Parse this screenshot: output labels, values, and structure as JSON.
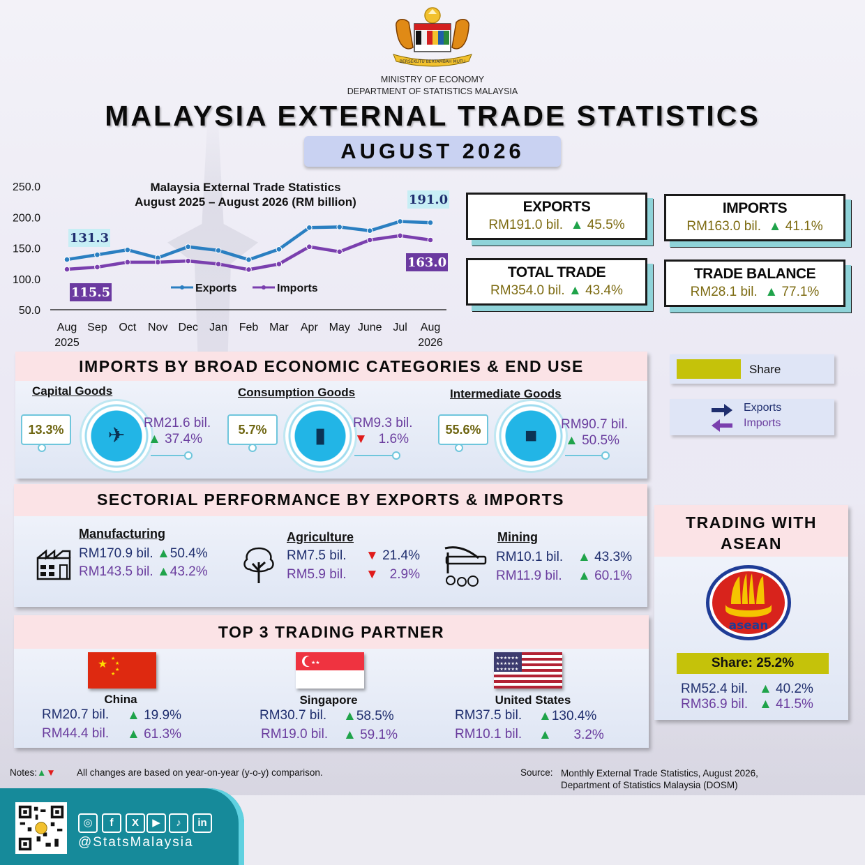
{
  "header": {
    "ministry_line1": "MINISTRY OF ECONOMY",
    "ministry_line2": "DEPARTMENT OF STATISTICS MALAYSIA",
    "crest_motto": "BERSEKUTU BERTAMBAH MUTU",
    "title": "MALAYSIA EXTERNAL TRADE STATISTICS",
    "period": "AUGUST 2026"
  },
  "chart_data": {
    "type": "line",
    "title_line1": "Malaysia External Trade Statistics",
    "title_line2": "August 2025 – August 2026 (RM billion)",
    "categories": [
      "Aug",
      "Sep",
      "Oct",
      "Nov",
      "Dec",
      "Jan",
      "Feb",
      "Mar",
      "Apr",
      "May",
      "June",
      "Jul",
      "Aug"
    ],
    "year_start": "2025",
    "year_end": "2026",
    "series": [
      {
        "name": "Exports",
        "color": "#2a7fc1",
        "values": [
          131.3,
          139,
          147,
          134,
          152,
          146,
          131,
          148,
          183,
          184,
          178,
          193,
          191.0
        ]
      },
      {
        "name": "Imports",
        "color": "#7a3fae",
        "values": [
          115.5,
          119,
          127,
          127,
          129,
          124,
          115,
          124,
          152,
          144,
          163,
          170,
          163.0
        ]
      }
    ],
    "labels": {
      "exports_first": "131.3",
      "exports_last": "191.0",
      "imports_first": "115.5",
      "imports_last": "163.0"
    },
    "yticks": [
      "250.0",
      "200.0",
      "150.0",
      "100.0",
      "50.0"
    ],
    "ylim": [
      50,
      250
    ],
    "grid": false,
    "legend": "inside-bottom"
  },
  "stats": {
    "exports": {
      "title": "EXPORTS",
      "value": "RM191.0 bil.",
      "arrow": "▲",
      "change": "45.5%"
    },
    "imports": {
      "title": "IMPORTS",
      "value": "RM163.0 bil.",
      "arrow": "▲",
      "change": "41.1%"
    },
    "total_trade": {
      "title": "TOTAL TRADE",
      "value": "RM354.0 bil.",
      "arrow": "▲",
      "change": "43.4%"
    },
    "trade_balance": {
      "title": "TRADE BALANCE",
      "value": "RM28.1 bil.",
      "arrow": "▲",
      "change": "77.1%"
    }
  },
  "legend_panel": {
    "share": "Share",
    "share_color": "#c5c20a",
    "exports": "Exports",
    "imports": "Imports"
  },
  "imports_bec": {
    "title": "IMPORTS BY BROAD ECONOMIC CATEGORIES & END USE",
    "items": [
      {
        "name": "Capital Goods",
        "share": "13.3%",
        "value": "RM21.6 bil.",
        "arrow": "▲",
        "change": "37.4%",
        "icon": "truck-globe-icon"
      },
      {
        "name": "Consumption Goods",
        "share": "5.7%",
        "value": "RM9.3 bil.",
        "arrow": "▼",
        "change": "1.6%",
        "icon": "shopping-basket-icon"
      },
      {
        "name": "Intermediate Goods",
        "share": "55.6%",
        "value": "RM90.7 bil.",
        "arrow": "▲",
        "change": "50.5%",
        "icon": "factory-icon"
      }
    ]
  },
  "sectorial": {
    "title": "SECTORIAL PERFORMANCE BY EXPORTS & IMPORTS",
    "items": [
      {
        "name": "Manufacturing",
        "exp_value": "RM170.9 bil.",
        "exp_arrow": "▲",
        "exp_change": "50.4%",
        "imp_value": "RM143.5 bil.",
        "imp_arrow": "▲",
        "imp_change": "43.2%",
        "icon": "factory-icon"
      },
      {
        "name": "Agriculture",
        "exp_value": "RM7.5 bil.",
        "exp_arrow": "▼",
        "exp_change": "21.4%",
        "imp_value": "RM5.9 bil.",
        "imp_arrow": "▼",
        "imp_change": "2.9%",
        "icon": "tree-icon"
      },
      {
        "name": "Mining",
        "exp_value": "RM10.1 bil.",
        "exp_arrow": "▲",
        "exp_change": "43.3%",
        "imp_value": "RM11.9 bil.",
        "imp_arrow": "▲",
        "imp_change": "60.1%",
        "icon": "pickaxe-icon"
      }
    ]
  },
  "partners": {
    "title": "TOP 3 TRADING PARTNER",
    "items": [
      {
        "name": "China",
        "exp_value": "RM20.7 bil.",
        "exp_arrow": "▲",
        "exp_change": "19.9%",
        "imp_value": "RM44.4 bil.",
        "imp_arrow": "▲",
        "imp_change": "61.3%"
      },
      {
        "name": "Singapore",
        "exp_value": "RM30.7 bil.",
        "exp_arrow": "▲",
        "exp_change": "58.5%",
        "imp_value": "RM19.0 bil.",
        "imp_arrow": "▲",
        "imp_change": "59.1%"
      },
      {
        "name": "United States",
        "exp_value": "RM37.5 bil.",
        "exp_arrow": "▲",
        "exp_change": "130.4%",
        "imp_value": "RM10.1 bil.",
        "imp_arrow": "▲",
        "imp_change": "3.2%"
      }
    ]
  },
  "asean": {
    "title_line1": "TRADING WITH",
    "title_line2": "ASEAN",
    "logo_text": "asean",
    "share": "Share: 25.2%",
    "exp_value": "RM52.4 bil.",
    "exp_arrow": "▲",
    "exp_change": "40.2%",
    "imp_value": "RM36.9 bil.",
    "imp_arrow": "▲",
    "imp_change": "41.5%"
  },
  "notes": {
    "label": "Notes:",
    "arrows": "▲▼",
    "text": "All changes are based on year-on-year (y-o-y) comparison.",
    "source_label": "Source:",
    "source_line1": "Monthly External Trade Statistics, August 2026,",
    "source_line2": "Department of Statistics Malaysia (DOSM)"
  },
  "footer": {
    "handle": "@StatsMalaysia",
    "socials": [
      "instagram-icon",
      "facebook-icon",
      "x-icon",
      "youtube-icon",
      "tiktok-icon",
      "linkedin-icon"
    ]
  }
}
